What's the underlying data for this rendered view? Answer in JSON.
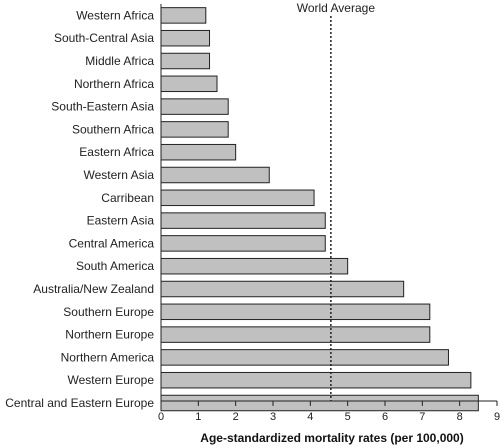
{
  "chart_data": {
    "type": "bar",
    "orientation": "horizontal",
    "title": "",
    "xlabel": "Age-standardized mortality rates (per 100,000)",
    "ylabel": "",
    "xlim": [
      0,
      9
    ],
    "xticks": [
      "0",
      "1",
      "2",
      "3",
      "4",
      "5",
      "6",
      "7",
      "8",
      "9"
    ],
    "grid": false,
    "categories": [
      "Western Africa",
      "South-Central Asia",
      "Middle Africa",
      "Northern Africa",
      "South-Eastern Asia",
      "Southern Africa",
      "Eastern Africa",
      "Western Asia",
      "Carribean",
      "Eastern Asia",
      "Central America",
      "South America",
      "Australia/New Zealand",
      "Southern Europe",
      "Northern Europe",
      "Northern America",
      "Western Europe",
      "Central and Eastern Europe"
    ],
    "values": [
      1.2,
      1.3,
      1.3,
      1.5,
      1.8,
      1.8,
      2.0,
      2.9,
      4.1,
      4.4,
      4.4,
      5.0,
      6.5,
      7.2,
      7.2,
      7.7,
      8.3,
      8.5
    ],
    "reference_line": {
      "label": "World Average",
      "value": 4.55
    },
    "colors": {
      "bar_fill": "#c0c0c0",
      "bar_stroke": "#222222",
      "axis": "#222222"
    }
  }
}
